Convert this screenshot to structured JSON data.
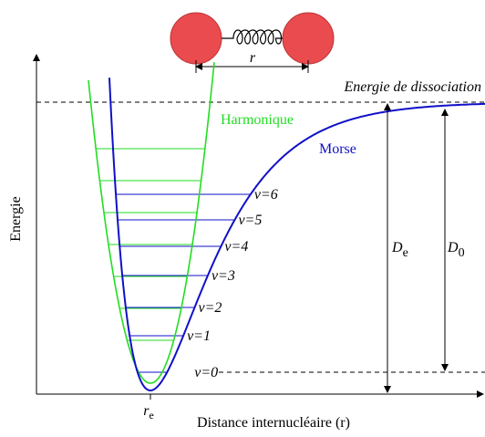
{
  "molecule": {
    "bond_label": "r"
  },
  "axes": {
    "y_label": "Energie",
    "x_label": "Distance internucléaire (r)",
    "x_marker": {
      "symbol": "r",
      "subscript": "e"
    }
  },
  "annotations": {
    "dissociation": "Energie de dissociation",
    "harmonic": "Harmonique",
    "morse": "Morse",
    "De": {
      "symbol": "D",
      "subscript": "e"
    },
    "D0": {
      "symbol": "D",
      "subscript": "0"
    }
  },
  "levels": [
    "v=0",
    "v=1",
    "v=2",
    "v=3",
    "v=4",
    "v=5",
    "v=6"
  ]
}
